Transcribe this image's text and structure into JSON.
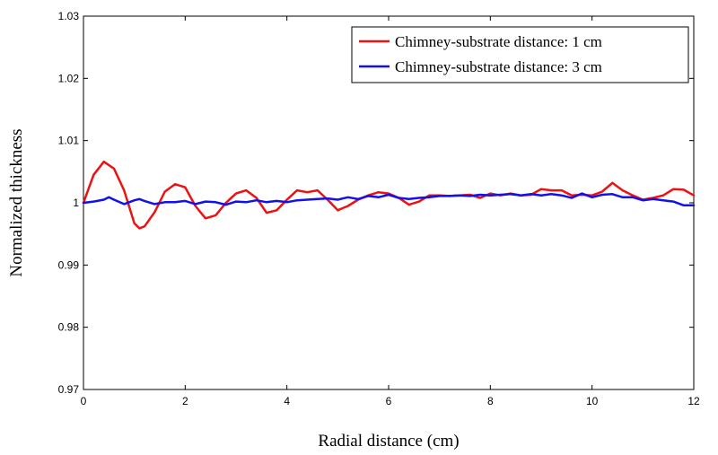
{
  "chart_data": {
    "type": "line",
    "title": "",
    "xlabel": "Radial distance (cm)",
    "ylabel": "Normalized thickness",
    "xlim": [
      0,
      12
    ],
    "ylim": [
      0.97,
      1.03
    ],
    "x_ticks": [
      0,
      2,
      4,
      6,
      8,
      10,
      12
    ],
    "y_ticks": [
      0.97,
      0.98,
      0.99,
      1,
      1.01,
      1.02,
      1.03
    ],
    "y_tick_labels": [
      "0.97",
      "0.98",
      "0.99",
      "1",
      "1.01",
      "1.02",
      "1.03"
    ],
    "grid": false,
    "legend_position": "top-right",
    "series": [
      {
        "name": "Chimney-substrate distance: 1 cm",
        "color": "#ee1111",
        "x": [
          0,
          0.2,
          0.4,
          0.6,
          0.8,
          1.0,
          1.1,
          1.2,
          1.4,
          1.6,
          1.8,
          2.0,
          2.2,
          2.4,
          2.6,
          2.8,
          3.0,
          3.2,
          3.4,
          3.6,
          3.8,
          4.0,
          4.2,
          4.4,
          4.6,
          4.8,
          5.0,
          5.2,
          5.4,
          5.6,
          5.8,
          6.0,
          6.2,
          6.4,
          6.6,
          6.8,
          7.0,
          7.2,
          7.4,
          7.6,
          7.8,
          8.0,
          8.2,
          8.4,
          8.6,
          8.8,
          9.0,
          9.2,
          9.4,
          9.6,
          9.8,
          10.0,
          10.2,
          10.4,
          10.6,
          10.8,
          11.0,
          11.2,
          11.4,
          11.6,
          11.8,
          12.0
        ],
        "y": [
          1.0,
          1.0045,
          1.0066,
          1.0055,
          1.002,
          0.9967,
          0.9959,
          0.9962,
          0.9985,
          1.0018,
          1.003,
          1.0025,
          0.9995,
          0.9975,
          0.998,
          1.0,
          1.0015,
          1.002,
          1.0008,
          0.9984,
          0.9988,
          1.0005,
          1.002,
          1.0017,
          1.002,
          1.0005,
          0.9988,
          0.9995,
          1.0005,
          1.0012,
          1.0017,
          1.0015,
          1.0008,
          0.9997,
          1.0002,
          1.0012,
          1.0012,
          1.0011,
          1.0012,
          1.0013,
          1.0008,
          1.0015,
          1.0012,
          1.0015,
          1.0012,
          1.0013,
          1.0022,
          1.002,
          1.002,
          1.0012,
          1.0013,
          1.0012,
          1.0018,
          1.0032,
          1.002,
          1.0012,
          1.0005,
          1.0008,
          1.0012,
          1.0022,
          1.0021,
          1.0012
        ]
      },
      {
        "name": "Chimney-substrate distance: 3 cm",
        "color": "#1111ee",
        "x": [
          0,
          0.2,
          0.4,
          0.5,
          0.6,
          0.8,
          1.0,
          1.1,
          1.2,
          1.4,
          1.6,
          1.8,
          2.0,
          2.2,
          2.4,
          2.6,
          2.8,
          3.0,
          3.2,
          3.4,
          3.6,
          3.8,
          4.0,
          4.2,
          4.4,
          4.6,
          4.8,
          5.0,
          5.2,
          5.4,
          5.6,
          5.8,
          6.0,
          6.2,
          6.4,
          6.6,
          6.8,
          7.0,
          7.2,
          7.4,
          7.6,
          7.8,
          8.0,
          8.2,
          8.4,
          8.6,
          8.8,
          9.0,
          9.2,
          9.4,
          9.6,
          9.8,
          10.0,
          10.2,
          10.4,
          10.6,
          10.8,
          11.0,
          11.2,
          11.4,
          11.6,
          11.8,
          12.0
        ],
        "y": [
          1.0,
          1.0002,
          1.0005,
          1.0009,
          1.0005,
          0.9998,
          1.0004,
          1.0006,
          1.0003,
          0.9998,
          1.0001,
          1.0001,
          1.0003,
          0.9998,
          1.0002,
          1.0001,
          0.9997,
          1.0002,
          1.0001,
          1.0004,
          1.0001,
          1.0003,
          1.0001,
          1.0004,
          1.0005,
          1.0006,
          1.0007,
          1.0005,
          1.0009,
          1.0006,
          1.0011,
          1.0009,
          1.0013,
          1.0008,
          1.0006,
          1.0008,
          1.0009,
          1.0011,
          1.0011,
          1.0012,
          1.0011,
          1.0013,
          1.0012,
          1.0013,
          1.0014,
          1.0012,
          1.0014,
          1.0012,
          1.0014,
          1.0012,
          1.0008,
          1.0015,
          1.0009,
          1.0013,
          1.0014,
          1.0009,
          1.0009,
          1.0004,
          1.0006,
          1.0004,
          1.0002,
          0.9996,
          0.9996
        ]
      }
    ]
  }
}
